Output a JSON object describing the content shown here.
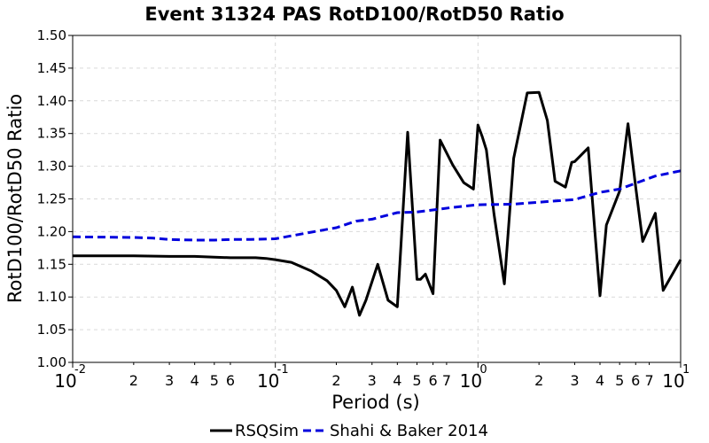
{
  "chart_data": {
    "type": "line",
    "title": "Event 31324 PAS RotD100/RotD50 Ratio",
    "xlabel": "Period (s)",
    "ylabel": "RotD100/RotD50 Ratio",
    "xscale": "log",
    "xlim": [
      0.01,
      10
    ],
    "ylim": [
      1.0,
      1.5
    ],
    "grid": true,
    "legend_placement": "bottom-center",
    "yticks": [
      "1.00",
      "1.05",
      "1.10",
      "1.15",
      "1.20",
      "1.25",
      "1.30",
      "1.35",
      "1.40",
      "1.45",
      "1.50"
    ],
    "xticks_major": [
      {
        "value": 0.01,
        "base": "10",
        "exp": "-2"
      },
      {
        "value": 0.1,
        "base": "10",
        "exp": "-1"
      },
      {
        "value": 1,
        "base": "10",
        "exp": "0"
      },
      {
        "value": 10,
        "base": "10",
        "exp": "1"
      }
    ],
    "xticks_minor": [
      {
        "value": 0.02,
        "label": "2"
      },
      {
        "value": 0.03,
        "label": "3"
      },
      {
        "value": 0.04,
        "label": "4"
      },
      {
        "value": 0.05,
        "label": "5"
      },
      {
        "value": 0.06,
        "label": "6"
      },
      {
        "value": 0.2,
        "label": "2"
      },
      {
        "value": 0.3,
        "label": "3"
      },
      {
        "value": 0.4,
        "label": "4"
      },
      {
        "value": 0.5,
        "label": "5"
      },
      {
        "value": 0.6,
        "label": "6"
      },
      {
        "value": 0.7,
        "label": "7"
      },
      {
        "value": 2,
        "label": "2"
      },
      {
        "value": 3,
        "label": "3"
      },
      {
        "value": 4,
        "label": "4"
      },
      {
        "value": 5,
        "label": "5"
      },
      {
        "value": 6,
        "label": "6"
      },
      {
        "value": 7,
        "label": "7"
      }
    ],
    "series": [
      {
        "name": "RSQSim",
        "color": "#000000",
        "dash": "solid",
        "x": [
          0.01,
          0.02,
          0.03,
          0.04,
          0.05,
          0.06,
          0.07,
          0.08,
          0.09,
          0.1,
          0.12,
          0.15,
          0.18,
          0.2,
          0.22,
          0.24,
          0.26,
          0.28,
          0.32,
          0.36,
          0.4,
          0.45,
          0.5,
          0.52,
          0.55,
          0.6,
          0.65,
          0.75,
          0.85,
          0.95,
          1.0,
          1.05,
          1.1,
          1.2,
          1.35,
          1.5,
          1.75,
          2.0,
          2.2,
          2.4,
          2.7,
          2.9,
          3.0,
          3.5,
          4.0,
          4.3,
          5.0,
          5.5,
          6.0,
          6.5,
          7.5,
          8.2,
          10.0
        ],
        "y": [
          1.163,
          1.163,
          1.162,
          1.162,
          1.161,
          1.16,
          1.16,
          1.16,
          1.159,
          1.157,
          1.153,
          1.14,
          1.125,
          1.11,
          1.085,
          1.115,
          1.072,
          1.095,
          1.15,
          1.095,
          1.085,
          1.352,
          1.127,
          1.127,
          1.135,
          1.105,
          1.34,
          1.302,
          1.275,
          1.265,
          1.363,
          1.345,
          1.325,
          1.227,
          1.12,
          1.312,
          1.412,
          1.413,
          1.37,
          1.277,
          1.268,
          1.306,
          1.307,
          1.328,
          1.102,
          1.21,
          1.262,
          1.365,
          1.268,
          1.185,
          1.228,
          1.11,
          1.157
        ]
      },
      {
        "name": "Shahi & Baker 2014",
        "color": "#0000dd",
        "dash": "dashed",
        "x": [
          0.01,
          0.02,
          0.025,
          0.03,
          0.04,
          0.05,
          0.06,
          0.075,
          0.1,
          0.15,
          0.2,
          0.25,
          0.3,
          0.4,
          0.5,
          0.75,
          1.0,
          1.5,
          2.0,
          3.0,
          4.0,
          5.0,
          7.5,
          10.0
        ],
        "y": [
          1.192,
          1.191,
          1.19,
          1.188,
          1.187,
          1.187,
          1.188,
          1.188,
          1.189,
          1.199,
          1.206,
          1.216,
          1.219,
          1.229,
          1.23,
          1.237,
          1.241,
          1.242,
          1.245,
          1.249,
          1.26,
          1.265,
          1.285,
          1.293
        ]
      }
    ]
  }
}
